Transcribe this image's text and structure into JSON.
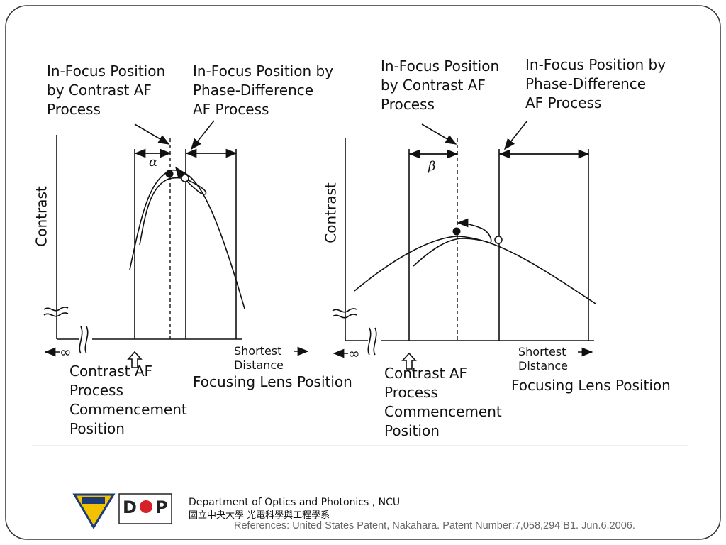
{
  "left_panel": {
    "contrast_label": [
      "In-Focus Position",
      "by Contrast AF",
      "Process"
    ],
    "phase_label": [
      "In-Focus Position by",
      "Phase-Difference",
      "AF Process"
    ],
    "symbol": "α",
    "y_axis": "Contrast",
    "x_start": "∞",
    "x_end": [
      "Shortest",
      "Distance"
    ],
    "commencement": [
      "Contrast AF",
      "Process",
      "Commencement",
      "Position"
    ],
    "x_axis": "Focusing Lens Position"
  },
  "right_panel": {
    "contrast_label": [
      "In-Focus Position",
      "by Contrast AF",
      "Process"
    ],
    "phase_label": [
      "In-Focus Position by",
      "Phase-Difference",
      "AF Process"
    ],
    "symbol": "β",
    "y_axis": "Contrast",
    "x_start": "∞",
    "x_end": [
      "Shortest",
      "Distance"
    ],
    "commencement": [
      "Contrast AF",
      "Process",
      "Commencement",
      "Position"
    ],
    "x_axis": "Focusing Lens Position"
  },
  "footer": {
    "logo": {
      "left": "D",
      "right": "P"
    },
    "department": "Department of Optics and Photonics , NCU",
    "chinese_name": "國立中央大學 光電科學與工程學系",
    "reference": "References: United States Patent, Nakahara. Patent Number:7,058,294 B1. Jun.6,2006."
  }
}
